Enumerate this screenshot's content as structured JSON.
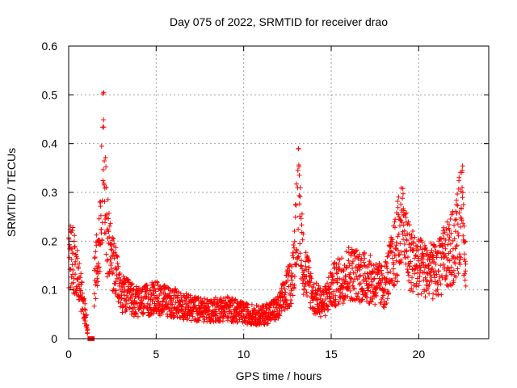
{
  "chart_data": {
    "type": "scatter",
    "title": "Day 075 of 2022, SRMTID for receiver drao",
    "xlabel": "GPS time / hours",
    "ylabel": "SRMTID / TECUs",
    "xlim": [
      0,
      24
    ],
    "ylim": [
      0,
      0.6
    ],
    "xticks": [
      0,
      5,
      10,
      15,
      20
    ],
    "xtick_labels": [
      "0",
      "5",
      "10",
      "15",
      "20"
    ],
    "yticks": [
      0,
      0.1,
      0.2,
      0.3,
      0.4,
      0.5,
      0.6
    ],
    "ytick_labels": [
      "0",
      "0.1",
      "0.2",
      "0.3",
      "0.4",
      "0.5",
      "0.6"
    ],
    "grid": true,
    "marker": "+",
    "color": "#ff0000",
    "data_range_hours": [
      0,
      22.7
    ],
    "profile": [
      {
        "x": 0.0,
        "y": 0.17
      },
      {
        "x": 0.3,
        "y": 0.15
      },
      {
        "x": 0.6,
        "y": 0.11
      },
      {
        "x": 1.2,
        "y": 0.0
      },
      {
        "x": 1.5,
        "y": 0.12
      },
      {
        "x": 1.8,
        "y": 0.2
      },
      {
        "x": 2.0,
        "y": 0.38
      },
      {
        "x": 2.2,
        "y": 0.2
      },
      {
        "x": 2.5,
        "y": 0.15
      },
      {
        "x": 3.0,
        "y": 0.09
      },
      {
        "x": 4.0,
        "y": 0.07
      },
      {
        "x": 5.0,
        "y": 0.08
      },
      {
        "x": 6.0,
        "y": 0.07
      },
      {
        "x": 7.0,
        "y": 0.06
      },
      {
        "x": 8.0,
        "y": 0.055
      },
      {
        "x": 9.0,
        "y": 0.06
      },
      {
        "x": 10.0,
        "y": 0.05
      },
      {
        "x": 11.0,
        "y": 0.045
      },
      {
        "x": 12.0,
        "y": 0.06
      },
      {
        "x": 12.8,
        "y": 0.12
      },
      {
        "x": 13.1,
        "y": 0.28
      },
      {
        "x": 13.4,
        "y": 0.15
      },
      {
        "x": 14.0,
        "y": 0.08
      },
      {
        "x": 14.6,
        "y": 0.07
      },
      {
        "x": 15.0,
        "y": 0.1
      },
      {
        "x": 16.0,
        "y": 0.13
      },
      {
        "x": 17.0,
        "y": 0.12
      },
      {
        "x": 18.0,
        "y": 0.1
      },
      {
        "x": 18.5,
        "y": 0.15
      },
      {
        "x": 19.0,
        "y": 0.22
      },
      {
        "x": 19.5,
        "y": 0.16
      },
      {
        "x": 20.0,
        "y": 0.14
      },
      {
        "x": 21.0,
        "y": 0.13
      },
      {
        "x": 22.0,
        "y": 0.18
      },
      {
        "x": 22.5,
        "y": 0.25
      },
      {
        "x": 22.7,
        "y": 0.12
      }
    ],
    "spikes": [
      {
        "center": 2.0,
        "peak": 0.5
      },
      {
        "center": 13.15,
        "peak": 0.4
      },
      {
        "center": 19.1,
        "peak": 0.34
      },
      {
        "center": 22.5,
        "peak": 0.36
      },
      {
        "center": 21.4,
        "peak": 0.28
      }
    ]
  }
}
